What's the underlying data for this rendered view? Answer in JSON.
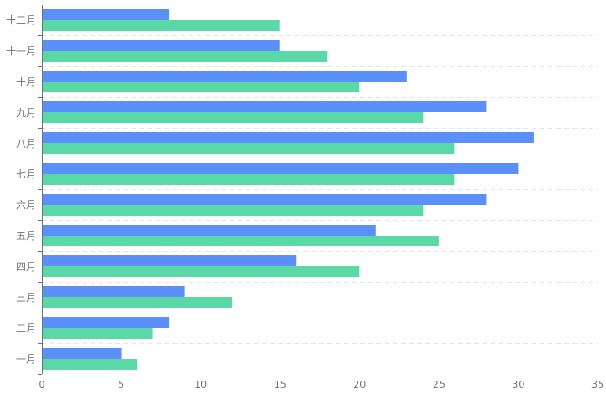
{
  "chart_data": {
    "type": "bar",
    "orientation": "horizontal",
    "categories": [
      "一月",
      "二月",
      "三月",
      "四月",
      "五月",
      "六月",
      "七月",
      "八月",
      "九月",
      "十月",
      "十一月",
      "十二月"
    ],
    "series": [
      {
        "values": [
          5,
          8,
          9,
          16,
          21,
          28,
          30,
          31,
          28,
          23,
          15,
          8
        ],
        "color": "#5b8ff9"
      },
      {
        "values": [
          6,
          7,
          12,
          20,
          25,
          24,
          26,
          26,
          24,
          20,
          18,
          15
        ],
        "color": "#5ad8a6"
      }
    ],
    "x_ticks": [
      "0",
      "5",
      "10",
      "15",
      "20",
      "25",
      "30",
      "35"
    ],
    "xlim": [
      0,
      35
    ],
    "grid": true,
    "grid_style": "dashed",
    "legend": "none",
    "colors": {
      "axis": "#6e7079",
      "grid": "#e0e6f1",
      "text": "#6e7079"
    }
  }
}
